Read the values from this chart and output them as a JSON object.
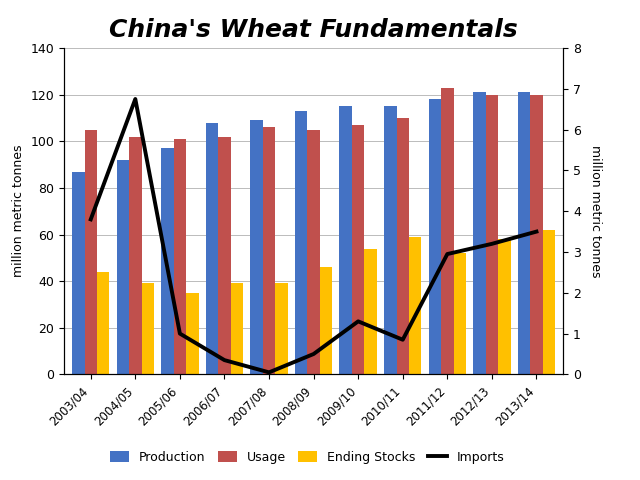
{
  "title": "China's Wheat Fundamentals",
  "categories": [
    "2003/04",
    "2004/05",
    "2005/06",
    "2006/07",
    "2007/08",
    "2008/09",
    "2009/10",
    "2010/11",
    "2011/12",
    "2012/13",
    "2013/14"
  ],
  "production": [
    87,
    92,
    97,
    108,
    109,
    113,
    115,
    115,
    118,
    121,
    121
  ],
  "usage": [
    105,
    102,
    101,
    102,
    106,
    105,
    107,
    110,
    123,
    120,
    120
  ],
  "ending_stocks": [
    44,
    39,
    35,
    39,
    39,
    46,
    54,
    59,
    52,
    58,
    62
  ],
  "imports_mmt": [
    3.8,
    6.75,
    1.0,
    0.35,
    0.05,
    0.5,
    1.3,
    0.85,
    2.95,
    3.2,
    3.5
  ],
  "production_color": "#4472C4",
  "usage_color": "#C0504D",
  "ending_stocks_color": "#FFC000",
  "imports_color": "#000000",
  "ylabel_left": "million metric tonnes",
  "ylabel_right": "million metric tonnes",
  "ylim_left": [
    0,
    140
  ],
  "ylim_right": [
    0,
    8
  ],
  "yticks_left": [
    0,
    20,
    40,
    60,
    80,
    100,
    120,
    140
  ],
  "yticks_right": [
    0,
    1,
    2,
    3,
    4,
    5,
    6,
    7,
    8
  ],
  "background_color": "#ffffff",
  "title_fontsize": 18,
  "legend_labels": [
    "Production",
    "Usage",
    "Ending Stocks",
    "Imports"
  ]
}
